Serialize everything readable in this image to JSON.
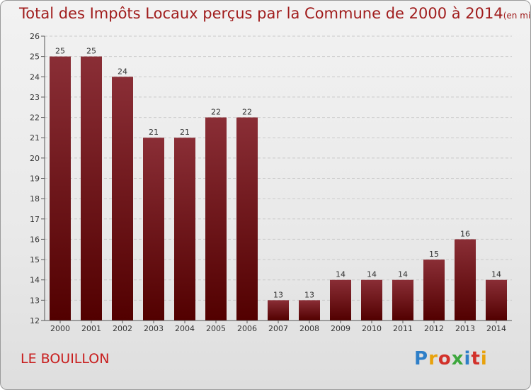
{
  "header": {
    "title": "Total des Impôts Locaux perçus par la Commune de 2000 à 2014",
    "unit": "(en milliers d'€)"
  },
  "footer": {
    "commune": "LE BOUILLON",
    "brand": "Proxiti"
  },
  "colors": {
    "bar_top": "#8a2e36",
    "bar_bottom": "#520000",
    "title": "#a01c1c",
    "commune": "#c81d1d"
  },
  "chart_data": {
    "type": "bar",
    "title": "Total des Impôts Locaux perçus par la Commune de 2000 à 2014",
    "unit": "(en milliers d'€)",
    "categories": [
      "2000",
      "2001",
      "2002",
      "2003",
      "2004",
      "2005",
      "2006",
      "2007",
      "2008",
      "2009",
      "2010",
      "2011",
      "2012",
      "2013",
      "2014"
    ],
    "values": [
      25,
      25,
      24,
      21,
      21,
      22,
      22,
      13,
      13,
      14,
      14,
      14,
      15,
      16,
      14
    ],
    "ylim": [
      12,
      26
    ],
    "yticks": [
      12,
      13,
      14,
      15,
      16,
      17,
      18,
      19,
      20,
      21,
      22,
      23,
      24,
      25,
      26
    ],
    "xlabel": "",
    "ylabel": "",
    "grid": true
  }
}
